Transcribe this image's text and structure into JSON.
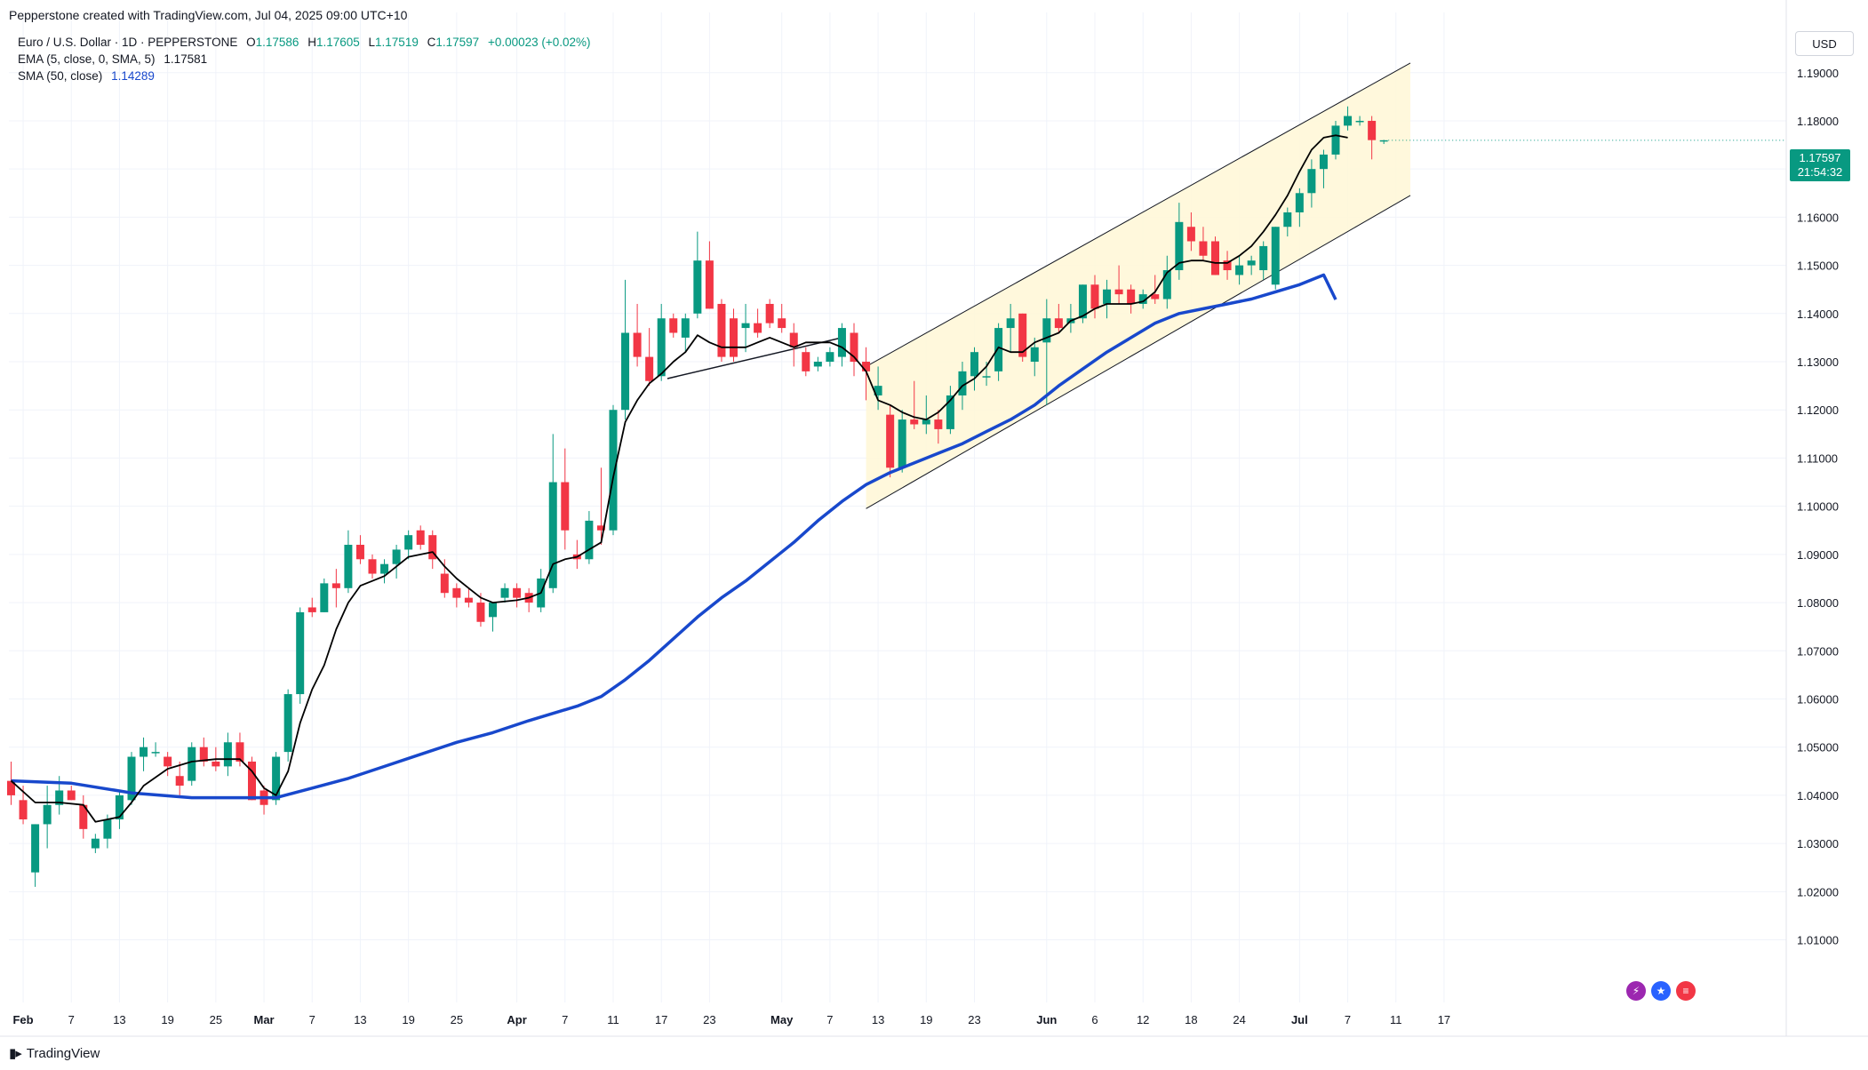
{
  "header": {
    "created_by": "Pepperstone created with TradingView.com, Jul 04, 2025 09:00 UTC+10"
  },
  "legend": {
    "symbol": "Euro / U.S. Dollar · 1D · PEPPERSTONE",
    "ohlc": {
      "o_label": "O",
      "o": "1.17586",
      "h_label": "H",
      "h": "1.17605",
      "l_label": "L",
      "l": "1.17519",
      "c_label": "C",
      "c": "1.17597",
      "change": "+0.00023 (+0.02%)"
    },
    "ema_label": "EMA (5, close, 0, SMA, 5)",
    "ema_value": "1.17581",
    "sma_label": "SMA (50, close)",
    "sma_value": "1.14289"
  },
  "currency_button": "USD",
  "price_tag": {
    "price": "1.17597",
    "countdown": "21:54:32"
  },
  "brand": {
    "name": "TradingView",
    "logo_icon": "tradingview-logo-icon"
  },
  "colors": {
    "up": "#089981",
    "down": "#f23645",
    "ema": "#000000",
    "sma": "#1848cc",
    "channel_fill": "#fff7d6",
    "channel_line": "#131722",
    "grid": "#f0f3fa"
  },
  "chart_data": {
    "type": "candlestick",
    "x_ticks": [
      {
        "i": 1,
        "label": "Feb"
      },
      {
        "i": 5,
        "label": "7"
      },
      {
        "i": 9,
        "label": "13"
      },
      {
        "i": 13,
        "label": "19"
      },
      {
        "i": 17,
        "label": "25"
      },
      {
        "i": 21,
        "label": "Mar"
      },
      {
        "i": 25,
        "label": "7"
      },
      {
        "i": 29,
        "label": "13"
      },
      {
        "i": 33,
        "label": "19"
      },
      {
        "i": 37,
        "label": "25"
      },
      {
        "i": 42,
        "label": "Apr"
      },
      {
        "i": 46,
        "label": "7"
      },
      {
        "i": 50,
        "label": "11"
      },
      {
        "i": 54,
        "label": "17"
      },
      {
        "i": 58,
        "label": "23"
      },
      {
        "i": 64,
        "label": "May"
      },
      {
        "i": 68,
        "label": "7"
      },
      {
        "i": 72,
        "label": "13"
      },
      {
        "i": 76,
        "label": "19"
      },
      {
        "i": 80,
        "label": "23"
      },
      {
        "i": 86,
        "label": "Jun"
      },
      {
        "i": 90,
        "label": "6"
      },
      {
        "i": 94,
        "label": "12"
      },
      {
        "i": 98,
        "label": "18"
      },
      {
        "i": 102,
        "label": "24"
      },
      {
        "i": 107,
        "label": "Jul"
      },
      {
        "i": 111,
        "label": "7"
      },
      {
        "i": 115,
        "label": "11"
      },
      {
        "i": 119,
        "label": "17"
      }
    ],
    "y_ticks": [
      "1.01000",
      "1.02000",
      "1.03000",
      "1.04000",
      "1.05000",
      "1.06000",
      "1.07000",
      "1.08000",
      "1.09000",
      "1.10000",
      "1.11000",
      "1.12000",
      "1.13000",
      "1.14000",
      "1.15000",
      "1.16000",
      "1.17000",
      "1.18000",
      "1.19000"
    ],
    "ylim": [
      0.997,
      1.2025
    ],
    "candles": [
      [
        1.043,
        1.047,
        1.038,
        1.04
      ],
      [
        1.039,
        1.042,
        1.034,
        1.035
      ],
      [
        1.024,
        1.034,
        1.021,
        1.034
      ],
      [
        1.034,
        1.042,
        1.029,
        1.038
      ],
      [
        1.038,
        1.044,
        1.036,
        1.041
      ],
      [
        1.041,
        1.042,
        1.039,
        1.039
      ],
      [
        1.038,
        1.04,
        1.031,
        1.033
      ],
      [
        1.029,
        1.032,
        1.028,
        1.031
      ],
      [
        1.031,
        1.036,
        1.029,
        1.035
      ],
      [
        1.035,
        1.041,
        1.033,
        1.04
      ],
      [
        1.039,
        1.049,
        1.038,
        1.048
      ],
      [
        1.048,
        1.052,
        1.045,
        1.05
      ],
      [
        1.049,
        1.051,
        1.048,
        1.049
      ],
      [
        1.048,
        1.049,
        1.044,
        1.046
      ],
      [
        1.044,
        1.047,
        1.04,
        1.042
      ],
      [
        1.043,
        1.051,
        1.042,
        1.05
      ],
      [
        1.05,
        1.052,
        1.046,
        1.047
      ],
      [
        1.047,
        1.05,
        1.045,
        1.046
      ],
      [
        1.046,
        1.053,
        1.044,
        1.051
      ],
      [
        1.051,
        1.053,
        1.046,
        1.047
      ],
      [
        1.047,
        1.048,
        1.039,
        1.039
      ],
      [
        1.041,
        1.042,
        1.036,
        1.038
      ],
      [
        1.039,
        1.049,
        1.038,
        1.048
      ],
      [
        1.049,
        1.062,
        1.047,
        1.061
      ],
      [
        1.061,
        1.079,
        1.059,
        1.078
      ],
      [
        1.079,
        1.081,
        1.077,
        1.078
      ],
      [
        1.078,
        1.085,
        1.078,
        1.084
      ],
      [
        1.084,
        1.087,
        1.079,
        1.083
      ],
      [
        1.083,
        1.095,
        1.082,
        1.092
      ],
      [
        1.092,
        1.094,
        1.088,
        1.089
      ],
      [
        1.089,
        1.09,
        1.085,
        1.086
      ],
      [
        1.086,
        1.089,
        1.084,
        1.088
      ],
      [
        1.088,
        1.092,
        1.085,
        1.091
      ],
      [
        1.091,
        1.095,
        1.089,
        1.094
      ],
      [
        1.095,
        1.096,
        1.091,
        1.092
      ],
      [
        1.094,
        1.095,
        1.087,
        1.089
      ],
      [
        1.086,
        1.089,
        1.081,
        1.082
      ],
      [
        1.083,
        1.084,
        1.079,
        1.081
      ],
      [
        1.081,
        1.083,
        1.079,
        1.08
      ],
      [
        1.08,
        1.082,
        1.075,
        1.076
      ],
      [
        1.077,
        1.08,
        1.074,
        1.08
      ],
      [
        1.081,
        1.084,
        1.08,
        1.083
      ],
      [
        1.083,
        1.084,
        1.079,
        1.081
      ],
      [
        1.082,
        1.083,
        1.078,
        1.08
      ],
      [
        1.079,
        1.087,
        1.078,
        1.085
      ],
      [
        1.083,
        1.115,
        1.082,
        1.105
      ],
      [
        1.105,
        1.112,
        1.091,
        1.095
      ],
      [
        1.09,
        1.093,
        1.087,
        1.089
      ],
      [
        1.089,
        1.099,
        1.088,
        1.097
      ],
      [
        1.096,
        1.108,
        1.092,
        1.095
      ],
      [
        1.095,
        1.121,
        1.094,
        1.12
      ],
      [
        1.12,
        1.147,
        1.118,
        1.136
      ],
      [
        1.136,
        1.142,
        1.129,
        1.131
      ],
      [
        1.131,
        1.137,
        1.125,
        1.126
      ],
      [
        1.127,
        1.142,
        1.126,
        1.139
      ],
      [
        1.139,
        1.14,
        1.135,
        1.136
      ],
      [
        1.135,
        1.14,
        1.132,
        1.139
      ],
      [
        1.14,
        1.157,
        1.139,
        1.151
      ],
      [
        1.151,
        1.155,
        1.141,
        1.141
      ],
      [
        1.142,
        1.143,
        1.13,
        1.131
      ],
      [
        1.139,
        1.141,
        1.13,
        1.131
      ],
      [
        1.137,
        1.142,
        1.132,
        1.138
      ],
      [
        1.138,
        1.141,
        1.135,
        1.136
      ],
      [
        1.142,
        1.143,
        1.137,
        1.138
      ],
      [
        1.139,
        1.142,
        1.136,
        1.137
      ],
      [
        1.136,
        1.138,
        1.129,
        1.133
      ],
      [
        1.132,
        1.133,
        1.127,
        1.128
      ],
      [
        1.129,
        1.131,
        1.128,
        1.13
      ],
      [
        1.13,
        1.133,
        1.129,
        1.132
      ],
      [
        1.131,
        1.138,
        1.129,
        1.137
      ],
      [
        1.136,
        1.138,
        1.127,
        1.13
      ],
      [
        1.13,
        1.133,
        1.122,
        1.128
      ],
      [
        1.123,
        1.129,
        1.12,
        1.125
      ],
      [
        1.119,
        1.121,
        1.106,
        1.108
      ],
      [
        1.108,
        1.12,
        1.107,
        1.118
      ],
      [
        1.118,
        1.126,
        1.116,
        1.117
      ],
      [
        1.117,
        1.123,
        1.115,
        1.118
      ],
      [
        1.118,
        1.12,
        1.113,
        1.116
      ],
      [
        1.116,
        1.125,
        1.115,
        1.123
      ],
      [
        1.123,
        1.13,
        1.12,
        1.128
      ],
      [
        1.127,
        1.133,
        1.124,
        1.132
      ],
      [
        1.127,
        1.13,
        1.125,
        1.127
      ],
      [
        1.128,
        1.138,
        1.126,
        1.137
      ],
      [
        1.137,
        1.142,
        1.132,
        1.139
      ],
      [
        1.14,
        1.14,
        1.13,
        1.131
      ],
      [
        1.13,
        1.135,
        1.127,
        1.133
      ],
      [
        1.134,
        1.143,
        1.121,
        1.139
      ],
      [
        1.139,
        1.142,
        1.136,
        1.137
      ],
      [
        1.138,
        1.142,
        1.136,
        1.139
      ],
      [
        1.139,
        1.146,
        1.138,
        1.146
      ],
      [
        1.146,
        1.148,
        1.139,
        1.141
      ],
      [
        1.142,
        1.147,
        1.139,
        1.145
      ],
      [
        1.145,
        1.15,
        1.142,
        1.144
      ],
      [
        1.145,
        1.146,
        1.14,
        1.142
      ],
      [
        1.142,
        1.145,
        1.141,
        1.144
      ],
      [
        1.144,
        1.148,
        1.142,
        1.143
      ],
      [
        1.143,
        1.152,
        1.141,
        1.149
      ],
      [
        1.149,
        1.163,
        1.147,
        1.159
      ],
      [
        1.158,
        1.161,
        1.153,
        1.155
      ],
      [
        1.155,
        1.158,
        1.151,
        1.152
      ],
      [
        1.155,
        1.156,
        1.148,
        1.148
      ],
      [
        1.151,
        1.153,
        1.147,
        1.149
      ],
      [
        1.148,
        1.152,
        1.146,
        1.15
      ],
      [
        1.15,
        1.152,
        1.148,
        1.151
      ],
      [
        1.149,
        1.155,
        1.147,
        1.154
      ],
      [
        1.146,
        1.158,
        1.145,
        1.158
      ],
      [
        1.158,
        1.162,
        1.156,
        1.161
      ],
      [
        1.161,
        1.166,
        1.158,
        1.165
      ],
      [
        1.165,
        1.172,
        1.162,
        1.17
      ],
      [
        1.17,
        1.174,
        1.166,
        1.173
      ],
      [
        1.173,
        1.18,
        1.172,
        1.179
      ],
      [
        1.179,
        1.183,
        1.178,
        1.181
      ],
      [
        1.18,
        1.181,
        1.179,
        1.18
      ],
      [
        1.18,
        1.181,
        1.172,
        1.176
      ],
      [
        1.17586,
        1.17605,
        1.17519,
        1.17597
      ]
    ],
    "ema": [
      [
        0,
        1.043
      ],
      [
        2,
        1.0385
      ],
      [
        4,
        1.0385
      ],
      [
        6,
        1.038
      ],
      [
        7,
        1.0345
      ],
      [
        9,
        1.0355
      ],
      [
        10,
        1.0385
      ],
      [
        11,
        1.042
      ],
      [
        13,
        1.0455
      ],
      [
        15,
        1.047
      ],
      [
        17,
        1.0475
      ],
      [
        19,
        1.0475
      ],
      [
        20,
        1.045
      ],
      [
        21,
        1.0415
      ],
      [
        22,
        1.04
      ],
      [
        23,
        1.045
      ],
      [
        24,
        1.055
      ],
      [
        25,
        1.062
      ],
      [
        26,
        1.067
      ],
      [
        27,
        1.0745
      ],
      [
        28,
        1.08
      ],
      [
        29,
        1.0835
      ],
      [
        30,
        1.0845
      ],
      [
        31,
        1.0855
      ],
      [
        32,
        1.0875
      ],
      [
        33,
        1.0895
      ],
      [
        35,
        1.0905
      ],
      [
        36,
        1.0875
      ],
      [
        37,
        1.085
      ],
      [
        38,
        1.083
      ],
      [
        39,
        1.081
      ],
      [
        40,
        1.08
      ],
      [
        42,
        1.0805
      ],
      [
        43,
        1.081
      ],
      [
        44,
        1.082
      ],
      [
        45,
        1.088
      ],
      [
        46,
        1.089
      ],
      [
        47,
        1.0895
      ],
      [
        48,
        1.091
      ],
      [
        49,
        1.0925
      ],
      [
        50,
        1.106
      ],
      [
        51,
        1.1175
      ],
      [
        52,
        1.122
      ],
      [
        53,
        1.1255
      ],
      [
        54,
        1.1275
      ],
      [
        55,
        1.13
      ],
      [
        56,
        1.132
      ],
      [
        57,
        1.1355
      ],
      [
        58,
        1.134
      ],
      [
        59,
        1.133
      ],
      [
        60,
        1.133
      ],
      [
        61,
        1.133
      ],
      [
        62,
        1.134
      ],
      [
        63,
        1.135
      ],
      [
        64,
        1.134
      ],
      [
        65,
        1.133
      ],
      [
        66,
        1.134
      ],
      [
        67,
        1.134
      ],
      [
        68,
        1.134
      ],
      [
        69,
        1.133
      ],
      [
        70,
        1.131
      ],
      [
        71,
        1.128
      ],
      [
        72,
        1.122
      ],
      [
        73,
        1.121
      ],
      [
        74,
        1.1195
      ],
      [
        75,
        1.1185
      ],
      [
        76,
        1.118
      ],
      [
        77,
        1.1195
      ],
      [
        78,
        1.122
      ],
      [
        79,
        1.125
      ],
      [
        80,
        1.1265
      ],
      [
        81,
        1.129
      ],
      [
        82,
        1.133
      ],
      [
        83,
        1.132
      ],
      [
        84,
        1.132
      ],
      [
        85,
        1.134
      ],
      [
        86,
        1.135
      ],
      [
        87,
        1.136
      ],
      [
        88,
        1.1385
      ],
      [
        89,
        1.1395
      ],
      [
        90,
        1.141
      ],
      [
        91,
        1.142
      ],
      [
        92,
        1.142
      ],
      [
        93,
        1.142
      ],
      [
        94,
        1.1425
      ],
      [
        95,
        1.1445
      ],
      [
        96,
        1.1485
      ],
      [
        97,
        1.1505
      ],
      [
        98,
        1.151
      ],
      [
        99,
        1.151
      ],
      [
        100,
        1.1505
      ],
      [
        101,
        1.1505
      ],
      [
        102,
        1.152
      ],
      [
        103,
        1.154
      ],
      [
        104,
        1.157
      ],
      [
        105,
        1.1605
      ],
      [
        106,
        1.1645
      ],
      [
        107,
        1.1695
      ],
      [
        108,
        1.174
      ],
      [
        109,
        1.1765
      ],
      [
        110,
        1.177
      ],
      [
        111,
        1.1765
      ]
    ],
    "sma": [
      [
        0,
        1.043
      ],
      [
        5,
        1.0425
      ],
      [
        10,
        1.0405
      ],
      [
        15,
        1.0395
      ],
      [
        20,
        1.0395
      ],
      [
        22,
        1.0395
      ],
      [
        25,
        1.0415
      ],
      [
        28,
        1.0435
      ],
      [
        31,
        1.046
      ],
      [
        34,
        1.0485
      ],
      [
        37,
        1.051
      ],
      [
        40,
        1.053
      ],
      [
        43,
        1.0555
      ],
      [
        45,
        1.057
      ],
      [
        47,
        1.0585
      ],
      [
        49,
        1.0605
      ],
      [
        51,
        1.064
      ],
      [
        53,
        1.068
      ],
      [
        55,
        1.0725
      ],
      [
        57,
        1.077
      ],
      [
        59,
        1.081
      ],
      [
        61,
        1.0845
      ],
      [
        63,
        1.0885
      ],
      [
        65,
        1.0925
      ],
      [
        67,
        1.097
      ],
      [
        69,
        1.101
      ],
      [
        71,
        1.1045
      ],
      [
        73,
        1.107
      ],
      [
        75,
        1.109
      ],
      [
        77,
        1.111
      ],
      [
        79,
        1.113
      ],
      [
        81,
        1.1155
      ],
      [
        83,
        1.118
      ],
      [
        85,
        1.121
      ],
      [
        87,
        1.125
      ],
      [
        89,
        1.1285
      ],
      [
        91,
        1.132
      ],
      [
        93,
        1.135
      ],
      [
        95,
        1.138
      ],
      [
        97,
        1.14
      ],
      [
        99,
        1.141
      ],
      [
        101,
        1.142
      ],
      [
        103,
        1.143
      ],
      [
        105,
        1.1445
      ],
      [
        107,
        1.146
      ],
      [
        109,
        1.148
      ],
      [
        110,
        1.14289
      ]
    ],
    "ema_line_label": "EMA (5, close, 0, SMA, 5)",
    "sma_line_label": "SMA (50, close)",
    "channel": {
      "upper": [
        [
          71,
          1.129
        ],
        [
          116.2,
          1.192
        ]
      ],
      "lower": [
        [
          71,
          1.0995
        ],
        [
          116.2,
          1.1645
        ]
      ]
    },
    "trendline": [
      [
        54.5,
        1.1265
      ],
      [
        69,
        1.135
      ]
    ]
  }
}
